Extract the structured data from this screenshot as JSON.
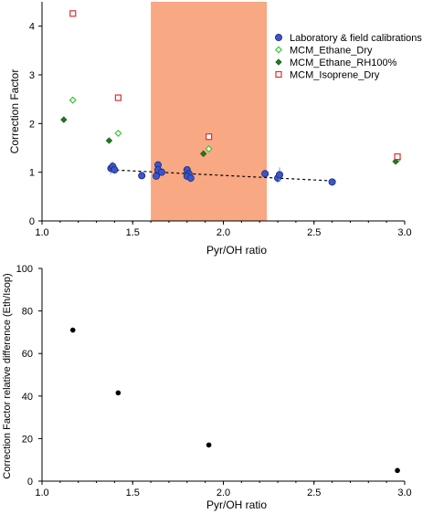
{
  "colors": {
    "calibration_fill": "#3a56c9",
    "calibration_edge": "#1c2a7a",
    "ethane_dry": "#3cc43c",
    "ethane_rh": "#1a7f1a",
    "isoprene": "#e03030",
    "shade": "#f8a882"
  },
  "chart_data": [
    {
      "type": "scatter",
      "xlabel": "Pyr/OH ratio",
      "ylabel": "Correction  Factor",
      "xlim": [
        1.0,
        3.0
      ],
      "ylim": [
        0,
        4.5
      ],
      "xticks": [
        "1.0",
        "1.5",
        "2.0",
        "2.5",
        "3.0"
      ],
      "yticks": [
        "0",
        "1",
        "2",
        "3",
        "4"
      ],
      "grid": false,
      "legend_position": "top-right",
      "shaded_region": {
        "x": [
          1.6,
          2.24
        ]
      },
      "trendline": {
        "x": [
          1.38,
          2.62
        ],
        "y": [
          1.05,
          0.82
        ],
        "style": "dashed"
      },
      "series": [
        {
          "name": "Laboratory & field calibrations",
          "marker": "filled-circle",
          "points": [
            {
              "x": 1.38,
              "y": 1.08,
              "err": 0.12
            },
            {
              "x": 1.39,
              "y": 1.12,
              "err": 0.1
            },
            {
              "x": 1.4,
              "y": 1.05,
              "err": 0.08
            },
            {
              "x": 1.55,
              "y": 0.93,
              "err": 0.05
            },
            {
              "x": 1.63,
              "y": 0.92,
              "err": 0.05
            },
            {
              "x": 1.64,
              "y": 1.15,
              "err": 0.05
            },
            {
              "x": 1.64,
              "y": 1.05,
              "err": 0.05
            },
            {
              "x": 1.66,
              "y": 1.0,
              "err": 0.05
            },
            {
              "x": 1.8,
              "y": 1.05,
              "err": 0.05
            },
            {
              "x": 1.81,
              "y": 0.97,
              "err": 0.05
            },
            {
              "x": 1.8,
              "y": 0.92,
              "err": 0.05
            },
            {
              "x": 1.82,
              "y": 0.88,
              "err": 0.08
            },
            {
              "x": 2.23,
              "y": 0.97,
              "err": 0.05
            },
            {
              "x": 2.3,
              "y": 0.88,
              "err": 0.1
            },
            {
              "x": 2.31,
              "y": 0.95,
              "err": 0.15
            },
            {
              "x": 2.6,
              "y": 0.8,
              "err": 0.04
            }
          ]
        },
        {
          "name": "MCM_Ethane_Dry",
          "marker": "open-diamond",
          "points": [
            {
              "x": 1.17,
              "y": 2.48
            },
            {
              "x": 1.42,
              "y": 1.8
            },
            {
              "x": 1.92,
              "y": 1.48
            },
            {
              "x": 2.96,
              "y": 1.26
            }
          ]
        },
        {
          "name": "MCM_Ethane_RH100%",
          "marker": "filled-diamond",
          "points": [
            {
              "x": 1.12,
              "y": 2.08
            },
            {
              "x": 1.37,
              "y": 1.65
            },
            {
              "x": 1.89,
              "y": 1.38
            },
            {
              "x": 2.95,
              "y": 1.22
            }
          ]
        },
        {
          "name": "MCM_Isoprene_Dry",
          "marker": "open-square",
          "points": [
            {
              "x": 1.17,
              "y": 4.26
            },
            {
              "x": 1.42,
              "y": 2.53
            },
            {
              "x": 1.92,
              "y": 1.73
            },
            {
              "x": 2.96,
              "y": 1.32
            }
          ]
        }
      ]
    },
    {
      "type": "scatter",
      "xlabel": "Pyr/OH ratio",
      "ylabel": "Correction Factor relative difference (Eth/Isop)",
      "xlim": [
        1.0,
        3.0
      ],
      "ylim": [
        0,
        100
      ],
      "xticks": [
        "1.0",
        "1.5",
        "2.0",
        "2.5",
        "3.0"
      ],
      "yticks": [
        "0",
        "20",
        "40",
        "60",
        "80",
        "100"
      ],
      "grid": false,
      "series": [
        {
          "marker": "filled-circle",
          "points": [
            {
              "x": 1.17,
              "y": 71
            },
            {
              "x": 1.42,
              "y": 41.5
            },
            {
              "x": 1.92,
              "y": 17
            },
            {
              "x": 2.96,
              "y": 5
            }
          ]
        }
      ]
    }
  ]
}
